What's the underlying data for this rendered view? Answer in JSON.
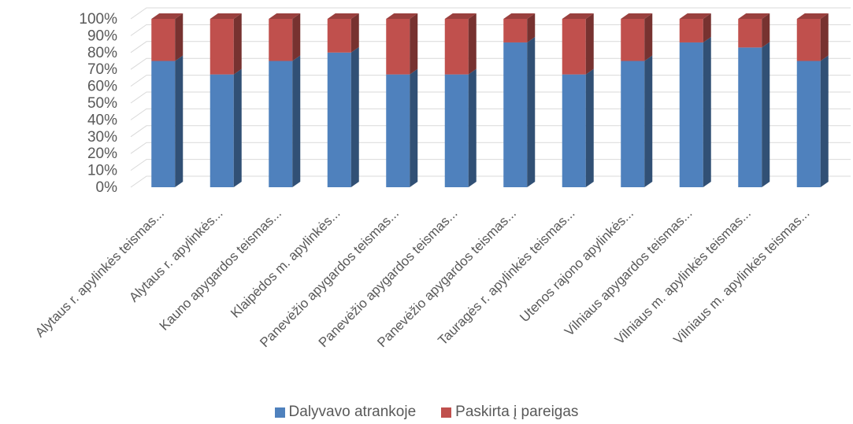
{
  "chart_data": {
    "type": "bar",
    "stacked": true,
    "percent_stacked": true,
    "three_d": true,
    "y_ticks": [
      "0%",
      "10%",
      "20%",
      "30%",
      "40%",
      "50%",
      "60%",
      "70%",
      "80%",
      "90%",
      "100%"
    ],
    "ylim": [
      0,
      100
    ],
    "grid": true,
    "legend_position": "bottom",
    "categories": [
      "Alytaus r. apylinkės teismas...",
      "Alytaus r. apylinkės...",
      "Kauno apygardos teismas...",
      "Klaipėdos m. apylinkės...",
      "Panevėžio apygardos teismas...",
      "Panevėžio apygardos teismas...",
      "Panevėžio apygardos teismas...",
      "Tauragės r. apylinkės teismas...",
      "Utenos rajono apylinkės...",
      "Vilniaus apygardos teismas...",
      "Vilniaus m. apylinkės teismas...",
      "Vilniaus m. apylinkės teismas..."
    ],
    "series": [
      {
        "name": "Dalyvavo atrankoje",
        "color": "#4F81BD",
        "values": [
          75,
          67,
          75,
          80,
          67,
          67,
          86,
          67,
          75,
          86,
          83,
          75
        ]
      },
      {
        "name": "Paskirta į pareigas",
        "color": "#C0504D",
        "values": [
          25,
          33,
          25,
          20,
          33,
          33,
          14,
          33,
          25,
          14,
          17,
          25
        ]
      }
    ]
  }
}
